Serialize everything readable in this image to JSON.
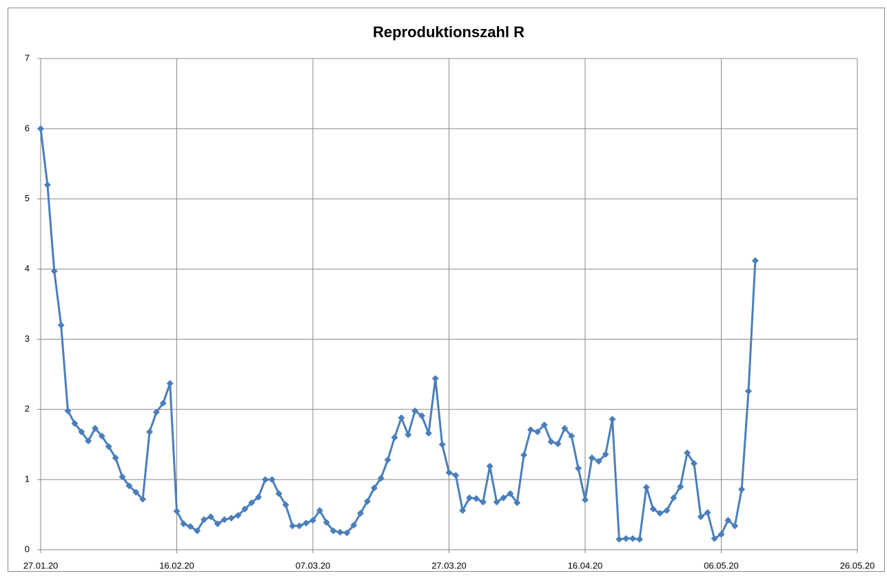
{
  "chart_data": {
    "type": "line",
    "title": "Reproduktionszahl R",
    "x": [
      "27.01.20",
      "28.01.20",
      "29.01.20",
      "30.01.20",
      "31.01.20",
      "01.02.20",
      "02.02.20",
      "03.02.20",
      "04.02.20",
      "05.02.20",
      "06.02.20",
      "07.02.20",
      "08.02.20",
      "09.02.20",
      "10.02.20",
      "11.02.20",
      "12.02.20",
      "13.02.20",
      "14.02.20",
      "15.02.20",
      "16.02.20",
      "17.02.20",
      "18.02.20",
      "19.02.20",
      "20.02.20",
      "21.02.20",
      "22.02.20",
      "23.02.20",
      "24.02.20",
      "25.02.20",
      "26.02.20",
      "27.02.20",
      "28.02.20",
      "29.02.20",
      "01.03.20",
      "02.03.20",
      "03.03.20",
      "04.03.20",
      "05.03.20",
      "06.03.20",
      "07.03.20",
      "08.03.20",
      "09.03.20",
      "10.03.20",
      "11.03.20",
      "12.03.20",
      "13.03.20",
      "14.03.20",
      "15.03.20",
      "16.03.20",
      "17.03.20",
      "18.03.20",
      "19.03.20",
      "20.03.20",
      "21.03.20",
      "22.03.20",
      "23.03.20",
      "24.03.20",
      "25.03.20",
      "26.03.20",
      "27.03.20",
      "28.03.20",
      "29.03.20",
      "30.03.20",
      "31.03.20",
      "01.04.20",
      "02.04.20",
      "03.04.20",
      "04.04.20",
      "05.04.20",
      "06.04.20",
      "07.04.20",
      "08.04.20",
      "09.04.20",
      "10.04.20",
      "11.04.20",
      "12.04.20",
      "13.04.20",
      "14.04.20",
      "15.04.20",
      "16.04.20",
      "17.04.20",
      "18.04.20",
      "19.04.20",
      "20.04.20",
      "21.04.20",
      "22.04.20",
      "23.04.20",
      "24.04.20",
      "25.04.20",
      "26.04.20",
      "27.04.20",
      "28.04.20",
      "29.04.20",
      "30.04.20",
      "01.05.20",
      "02.05.20",
      "03.05.20",
      "04.05.20",
      "05.05.20",
      "06.05.20",
      "07.05.20",
      "08.05.20",
      "09.05.20",
      "10.05.20",
      "11.05.20"
    ],
    "values": [
      6.0,
      5.2,
      3.97,
      3.2,
      1.98,
      1.8,
      1.68,
      1.55,
      1.73,
      1.62,
      1.47,
      1.31,
      1.04,
      0.91,
      0.82,
      0.72,
      1.68,
      1.96,
      2.09,
      2.37,
      0.55,
      0.37,
      0.33,
      0.27,
      0.43,
      0.47,
      0.37,
      0.43,
      0.45,
      0.49,
      0.58,
      0.67,
      0.75,
      1.0,
      1.0,
      0.8,
      0.64,
      0.34,
      0.34,
      0.38,
      0.42,
      0.56,
      0.39,
      0.27,
      0.25,
      0.24,
      0.35,
      0.52,
      0.69,
      0.88,
      1.02,
      1.28,
      1.6,
      1.88,
      1.64,
      1.98,
      1.91,
      1.66,
      2.44,
      1.5,
      1.1,
      1.06,
      0.56,
      0.74,
      0.73,
      0.68,
      1.19,
      0.68,
      0.74,
      0.8,
      0.67,
      1.35,
      1.71,
      1.68,
      1.78,
      1.54,
      1.51,
      1.73,
      1.62,
      1.16,
      0.71,
      1.31,
      1.26,
      1.36,
      1.86,
      0.15,
      0.16,
      0.16,
      0.15,
      0.89,
      0.58,
      0.52,
      0.56,
      0.74,
      0.9,
      1.38,
      1.23,
      0.47,
      0.53,
      0.16,
      0.22,
      0.42,
      0.34,
      0.86,
      2.26,
      4.12
    ],
    "color": "#4a7ebb",
    "xlim": [
      "27.01.20",
      "26.05.20"
    ],
    "xticks": [
      "27.01.20",
      "16.02.20",
      "07.03.20",
      "27.03.20",
      "16.04.20",
      "06.05.20",
      "26.05.20"
    ],
    "ylim": [
      0,
      7
    ],
    "yticks": [
      0,
      1,
      2,
      3,
      4,
      5,
      6,
      7
    ],
    "grid": true
  }
}
